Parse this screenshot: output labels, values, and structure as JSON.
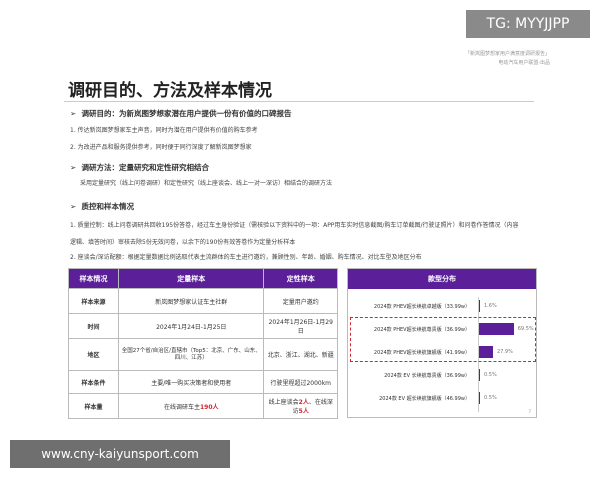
{
  "watermarks": {
    "top": "TG: MYYJJPP",
    "bottom": "www.cny-kaiyunsport.com"
  },
  "report": {
    "name": "「新岚图梦想家用户满意度调研报告」",
    "publisher": "电动汽车用户联盟·出品"
  },
  "title": "调研目的、方法及样本情况",
  "sections": [
    {
      "heading": "调研目的：为新岚图梦想家潜在用户提供一份有价值的口碑报告",
      "items": [
        "1.  传达新岚图梦想家车主声音，同时为潜在用户提供有价值的购车参考",
        "2.  为改进产品和服务提供参考，同时便于同行深度了解新岚图梦想家"
      ]
    },
    {
      "heading": "调研方法：定量研究和定性研究相结合",
      "items": [
        "采用定量研究（线上问卷调研）和定性研究（线上座谈会、线上一对一深访）相结合的调研方法"
      ]
    },
    {
      "heading": "质控和样本情况",
      "items": [
        "1.  质量控制：线上问卷调研共回收195份答卷，经过车主身份验证（需核验以下资料中的一项：APP用车实时信息截图/购车订单截图/行驶证照片）和问卷作答情况（内容逻辑、填答时间）审核去除5份无效问卷，以余下的190份有效答卷作为定量分析样本",
        "2.  座谈会/深访配额：根据定量数据比例选取代表主流群体的车主进行邀约，兼顾性别、年龄、婚姻、购车情况、对比车型及地区分布"
      ]
    }
  ],
  "table": {
    "headers": [
      "样本情况",
      "定量样本",
      "定性样本"
    ],
    "rows": [
      [
        "样本来源",
        "新岚图梦想家认证车主社群",
        "定量用户邀约"
      ],
      [
        "时间",
        "2024年1月24日-1月25日",
        "2024年1月26日-1月29日"
      ],
      [
        "地区",
        "全国27个省/自治区/直辖市（Top5：北京、广东、山东、四川、江苏）",
        "北京、浙江、湖北、新疆"
      ]
    ],
    "cond": [
      "样本条件",
      "主要/唯一购买决策者和使用者",
      "行驶里程超过2000km"
    ],
    "size": {
      "label": "样本量",
      "q_pre": "在线调研车主",
      "q_num": "190人",
      "l_pre": "线上座谈会",
      "l_num1": "2人",
      "l_mid": "、在线深访",
      "l_num2": "5人"
    }
  },
  "chart_data": {
    "type": "bar",
    "title": "款型分布",
    "orientation": "horizontal",
    "categories": [
      "2024款 PHEV超长续航卓越版（33.99w）",
      "2024款 PHEV超长续航尊贵版（36.99w）",
      "2024款 PHEV超长续航旗舰版（41.99w）",
      "2024款 EV 长续航尊贵版（36.99w）",
      "2024款 EV 超长续航旗舰版（46.99w）"
    ],
    "values": [
      1.6,
      69.5,
      27.9,
      0.5,
      0.5
    ],
    "labels": [
      "1.6%",
      "69.5%",
      "27.9%",
      "0.5%",
      "0.5%"
    ],
    "highlighted": [
      1,
      2
    ],
    "color": "#5b1f9a"
  },
  "page_number": "7"
}
